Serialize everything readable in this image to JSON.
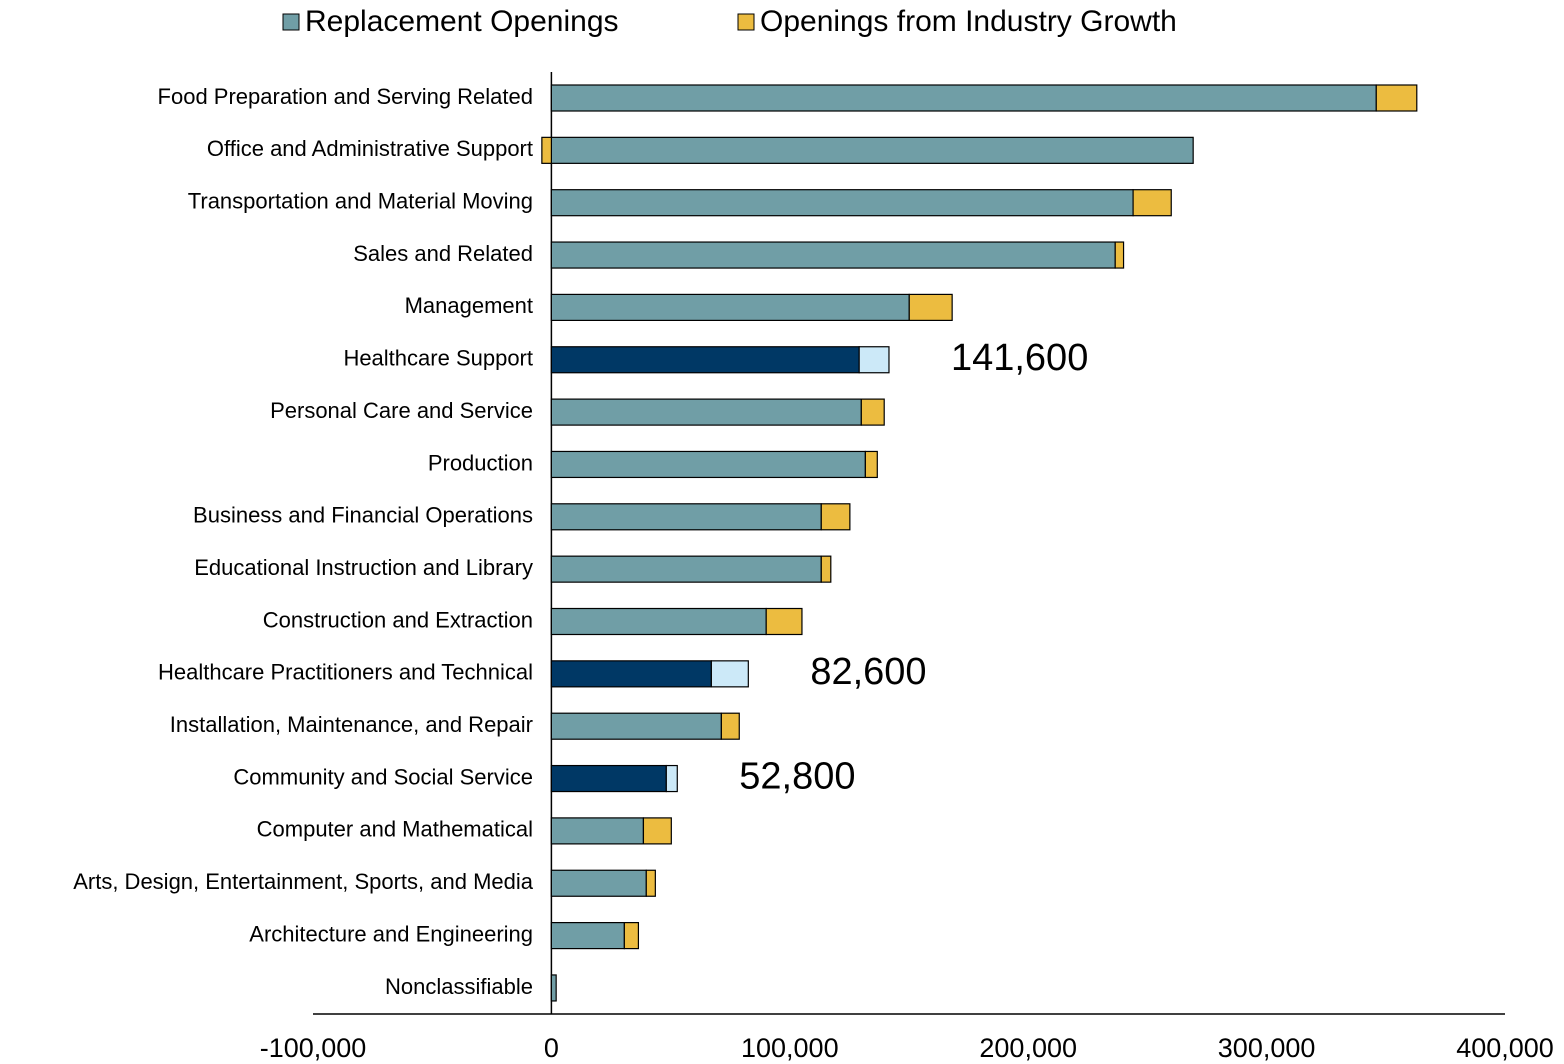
{
  "chart_data": {
    "type": "stacked-barh",
    "categories": [
      "Food Preparation and Serving Related",
      "Office and Administrative Support",
      "Transportation and Material Moving",
      "Sales and Related",
      "Management",
      "Healthcare Support",
      "Personal Care and Service",
      "Production",
      "Business and Financial Operations",
      "Educational Instruction and Library",
      "Construction and Extraction",
      "Healthcare Practitioners and Technical",
      "Installation, Maintenance, and Repair",
      "Community and Social Service",
      "Computer and Mathematical",
      "Arts, Design, Entertainment, Sports, and Media",
      "Architecture and Engineering",
      "Nonclassifiable"
    ],
    "series": [
      {
        "name": "Replacement Openings",
        "color": "#709ea6",
        "highlight_color": "#003865",
        "values": [
          346000,
          269200,
          244000,
          236500,
          150100,
          129100,
          130000,
          131700,
          113200,
          113200,
          90100,
          67100,
          71300,
          48200,
          38600,
          39800,
          30600,
          2000
        ]
      },
      {
        "name": "Openings from Industry Growth",
        "color": "#ecbc40",
        "highlight_color": "#cce9f8",
        "values": [
          17000,
          -4000,
          16000,
          3500,
          18000,
          12500,
          9600,
          5000,
          12000,
          4000,
          15000,
          15500,
          7500,
          4600,
          11700,
          3800,
          5900,
          0
        ]
      }
    ],
    "highlight": [
      5,
      11,
      13
    ],
    "annotations": [
      {
        "text": "141,600",
        "category": 5
      },
      {
        "text": "82,600",
        "category": 11
      },
      {
        "text": "52,800",
        "category": 13
      }
    ],
    "xlim": [
      -100000,
      400000
    ],
    "xticks": [
      {
        "value": -100000,
        "label": "-100,000"
      },
      0,
      {
        "value": 100000,
        "label": "100,000"
      },
      {
        "value": 200000,
        "label": "200,000"
      },
      {
        "value": 300000,
        "label": "300,000"
      },
      {
        "value": 400000,
        "label": "400,000"
      }
    ],
    "legend": "top"
  }
}
